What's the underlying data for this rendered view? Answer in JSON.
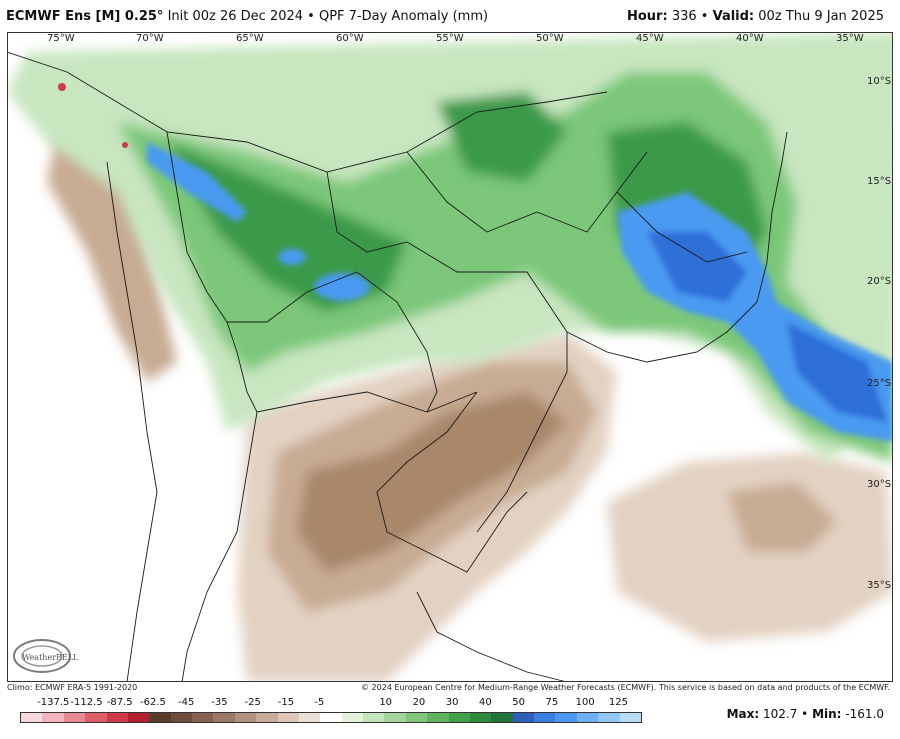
{
  "header": {
    "model": "ECMWF Ens [M] 0.25°",
    "init": "Init 00z 26 Dec 2024",
    "bullet": "•",
    "product": "QPF 7-Day Anomaly (mm)",
    "hour_label": "Hour:",
    "hour_value": "336",
    "valid_label": "Valid:",
    "valid_value": "00z Thu 9 Jan 2025"
  },
  "map": {
    "lon_labels": [
      "75°W",
      "70°W",
      "65°W",
      "60°W",
      "55°W",
      "50°W",
      "45°W",
      "40°W",
      "35°W"
    ],
    "lat_labels": [
      "10°S",
      "15°S",
      "20°S",
      "25°S",
      "30°S",
      "35°S"
    ],
    "logo_text": "WeatherBELL",
    "colors": {
      "dry_strong": "#a8876b",
      "dry_mid": "#c7ab93",
      "dry_light": "#e3d2c3",
      "wet_light": "#c8e6c0",
      "wet_mid": "#7cc77a",
      "wet_strong": "#3b9a4a",
      "wet_max": "#2f6fd8",
      "wet_blue_light": "#4a9af0"
    }
  },
  "footer": {
    "climo": "Climo: ECMWF ERA-5 1991-2020",
    "copyright": "© 2024 European Centre for Medium-Range Weather Forecasts (ECMWF). This service is based on data and products of the ECMWF."
  },
  "legend": {
    "labels": [
      "-137.5",
      "-112.5",
      "-87.5",
      "-62.5",
      "-45",
      "-35",
      "-25",
      "-15",
      "-5",
      "10",
      "20",
      "30",
      "40",
      "50",
      "75",
      "100",
      "125"
    ],
    "colors": [
      "#f9d8de",
      "#f2b4bd",
      "#e98993",
      "#de5f6a",
      "#cf3b48",
      "#b02030",
      "#5b3a2b",
      "#6e4b3a",
      "#856250",
      "#9b7966",
      "#b19282",
      "#c7ab9b",
      "#dcc7b9",
      "#ece0d6",
      "#ffffff",
      "#e3f1dd",
      "#c4e4bb",
      "#a4d59b",
      "#82c57b",
      "#61b35f",
      "#449f4b",
      "#2f8a3c",
      "#21733a",
      "#2f5fb7",
      "#3a7ee0",
      "#4c97ee",
      "#6eaff2",
      "#92c6f5",
      "#b6dcf8"
    ]
  },
  "stats": {
    "max_label": "Max:",
    "max_value": "102.7",
    "min_label": "Min:",
    "min_value": "-161.0"
  }
}
